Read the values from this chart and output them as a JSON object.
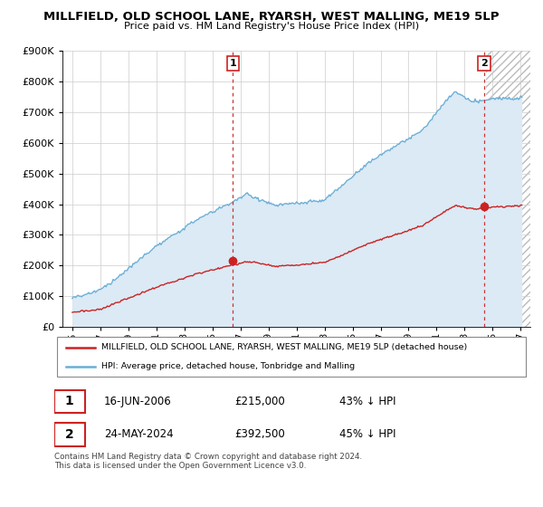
{
  "title": "MILLFIELD, OLD SCHOOL LANE, RYARSH, WEST MALLING, ME19 5LP",
  "subtitle": "Price paid vs. HM Land Registry's House Price Index (HPI)",
  "ytick_vals": [
    0,
    100000,
    200000,
    300000,
    400000,
    500000,
    600000,
    700000,
    800000,
    900000
  ],
  "ylim": [
    0,
    900000
  ],
  "legend_line1": "MILLFIELD, OLD SCHOOL LANE, RYARSH, WEST MALLING, ME19 5LP (detached house)",
  "legend_line2": "HPI: Average price, detached house, Tonbridge and Malling",
  "transaction1_date": "16-JUN-2006",
  "transaction1_price": "£215,000",
  "transaction1_note": "43% ↓ HPI",
  "transaction2_date": "24-MAY-2024",
  "transaction2_price": "£392,500",
  "transaction2_note": "45% ↓ HPI",
  "footnote": "Contains HM Land Registry data © Crown copyright and database right 2024.\nThis data is licensed under the Open Government Licence v3.0.",
  "hpi_color": "#6baed6",
  "hpi_fill_color": "#dbeaf5",
  "price_color": "#cc2222",
  "vline_color": "#cc3333",
  "background_color": "#ffffff",
  "grid_color": "#cccccc",
  "transaction1_year": 2006.46,
  "transaction2_year": 2024.39,
  "hatch_start": 2024.5,
  "xlim_left": 1994.3,
  "xlim_right": 2027.7
}
